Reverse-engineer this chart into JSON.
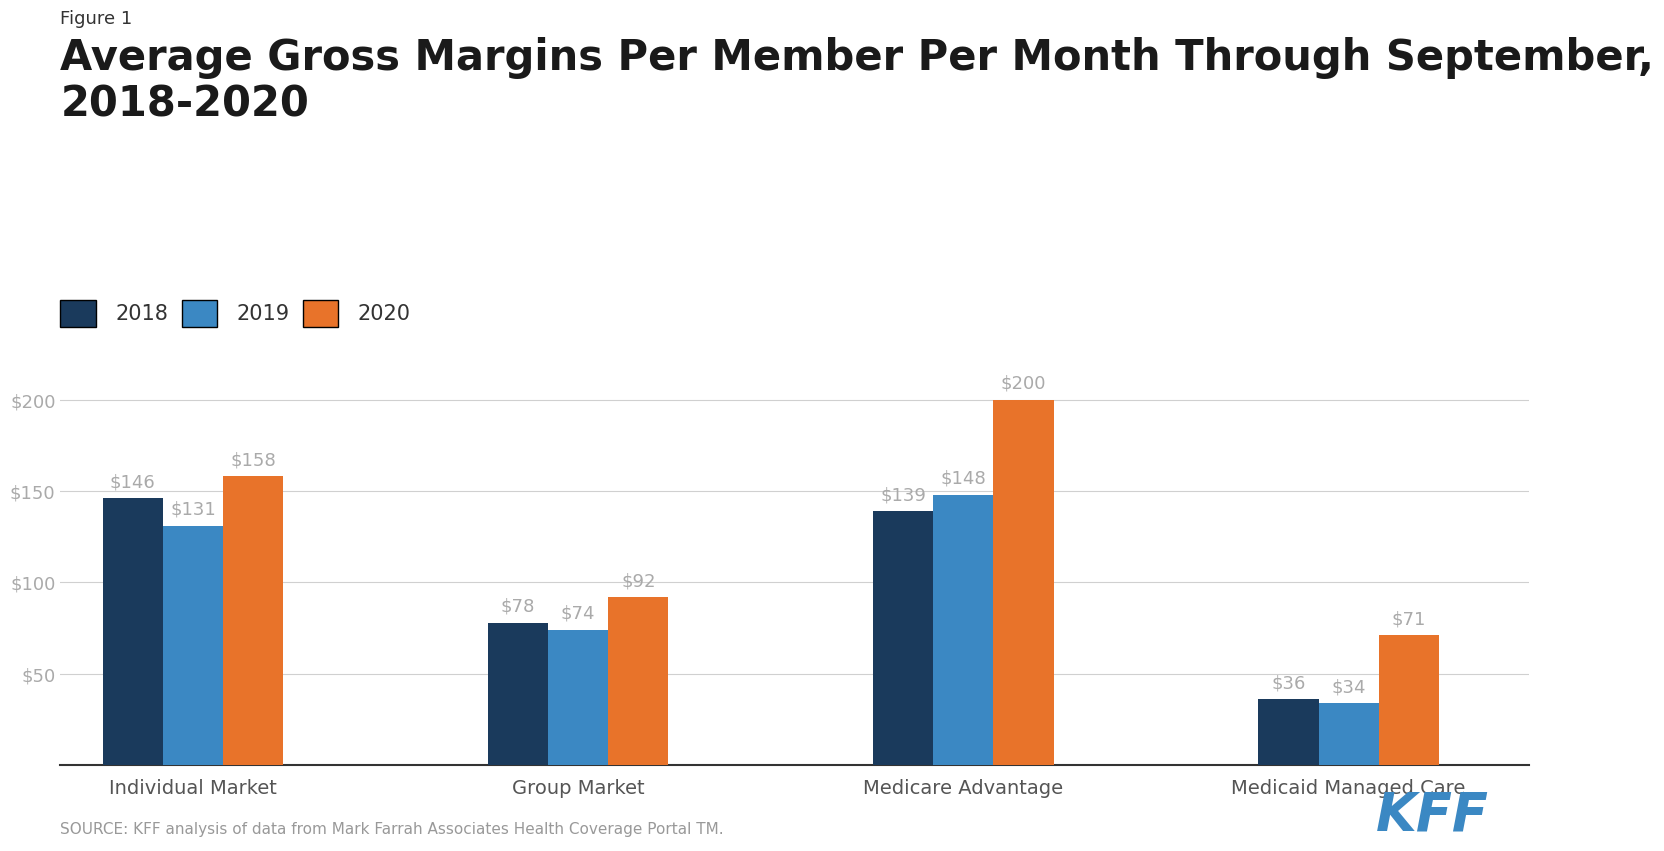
{
  "figure_label": "Figure 1",
  "title": "Average Gross Margins Per Member Per Month Through September,\n2018-2020",
  "categories": [
    "Individual Market",
    "Group Market",
    "Medicare Advantage",
    "Medicaid Managed Care"
  ],
  "years": [
    "2018",
    "2019",
    "2020"
  ],
  "values": {
    "Individual Market": [
      146,
      131,
      158
    ],
    "Group Market": [
      78,
      74,
      92
    ],
    "Medicare Advantage": [
      139,
      148,
      200
    ],
    "Medicaid Managed Care": [
      36,
      34,
      71
    ]
  },
  "bar_colors": [
    "#1a3a5c",
    "#3b88c3",
    "#e8732a"
  ],
  "ylim": [
    0,
    230
  ],
  "yticks": [
    50,
    100,
    150,
    200
  ],
  "ytick_labels": [
    "$50",
    "$100",
    "$150",
    "$200"
  ],
  "background_color": "#ffffff",
  "grid_color": "#d0d0d0",
  "source_text": "SOURCE: KFF analysis of data from Mark Farrah Associates Health Coverage Portal TM.",
  "kff_color": "#3b88c3",
  "label_color": "#aaaaaa",
  "title_fontsize": 30,
  "figure_label_fontsize": 13,
  "legend_fontsize": 15,
  "tick_fontsize": 13,
  "category_fontsize": 14,
  "bar_label_fontsize": 13,
  "source_fontsize": 11
}
